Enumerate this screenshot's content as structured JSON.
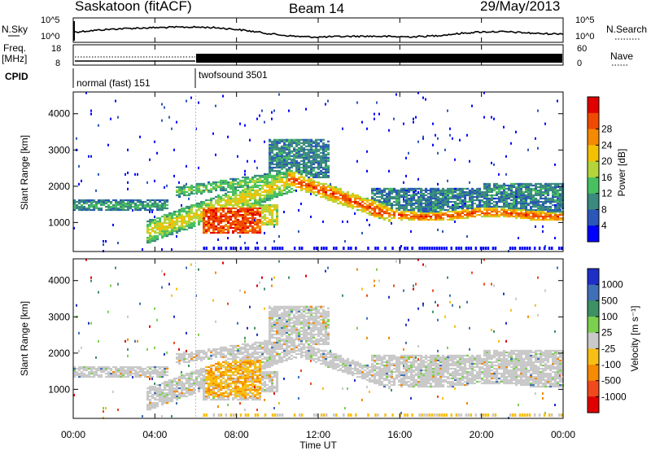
{
  "header": {
    "station": "Saskatoon (fitACF)",
    "beam": "Beam 14",
    "date": "29/May/2013"
  },
  "noise_panel": {
    "left_label": "N.Sky",
    "right_label": "N.Search",
    "left_ticks": [
      "10^5",
      "10^0"
    ],
    "right_ticks": [
      "10^5",
      "10^0"
    ]
  },
  "freq_panel": {
    "left_label_1": "Freq.",
    "left_label_2": "[MHz]",
    "left_ticks": [
      "18",
      "8"
    ],
    "right_label": "Nave",
    "right_ticks": [
      "60",
      "0"
    ]
  },
  "cpid": {
    "label": "CPID",
    "modes": [
      {
        "name": "normal (fast) 151",
        "start_hour": 0,
        "end_hour": 6
      },
      {
        "name": "twofsound 3501",
        "start_hour": 6,
        "end_hour": 24
      }
    ]
  },
  "time_axis": {
    "label": "Time UT",
    "ticks": [
      "00:00",
      "04:00",
      "08:00",
      "12:00",
      "16:00",
      "20:00",
      "00:00"
    ]
  },
  "power_panel": {
    "ylabel": "Slant Range [km]",
    "yticks": [
      "1000",
      "2000",
      "3000",
      "4000"
    ],
    "colorbar_label": "Power [dB]",
    "colorbar_ticks": [
      "4",
      "8",
      "12",
      "16",
      "20",
      "24",
      "28"
    ],
    "colors": [
      "#0000ff",
      "#2a57b8",
      "#3a8a7e",
      "#49c060",
      "#b5d43a",
      "#f4c100",
      "#f58a00",
      "#ef4a00",
      "#e00000"
    ]
  },
  "velocity_panel": {
    "ylabel": "Slant Range [km]",
    "yticks": [
      "1000",
      "2000",
      "3000",
      "4000"
    ],
    "colorbar_label": "Velocity [m s⁻¹]",
    "colorbar_ticks": [
      "1000",
      "500",
      "100",
      "25",
      "-25",
      "-100",
      "-500",
      "-1000"
    ],
    "colors": [
      "#1e2fc8",
      "#3f6fb6",
      "#3d9163",
      "#7bd04e",
      "#c9c9c9",
      "#f7bf14",
      "#f68a00",
      "#f0491c",
      "#e00000"
    ]
  },
  "chart_data": [
    {
      "type": "heatmap",
      "title": "Saskatoon (fitACF) Beam 14 29/May/2013",
      "xlabel": "Time UT",
      "ylabel": "Slant Range [km]",
      "xlim": [
        0,
        24
      ],
      "ylim": [
        200,
        4600
      ],
      "colorbar": {
        "label": "Power [dB]",
        "range": [
          0,
          30
        ]
      },
      "features": [
        {
          "name": "quiet band",
          "start_hour": 0.0,
          "end_hour": 4.5,
          "range_km": [
            1300,
            1600
          ],
          "power_db": 9
        },
        {
          "name": "rising arc",
          "start_hour": 4.0,
          "end_hour": 11.0,
          "range_km": [
            600,
            2400
          ],
          "power_db": 16
        },
        {
          "name": "intense patch",
          "start_hour": 6.5,
          "end_hour": 9.0,
          "range_km": [
            700,
            1300
          ],
          "power_db": 27
        },
        {
          "name": "descending band",
          "start_hour": 11.0,
          "end_hour": 15.0,
          "range_km": [
            1100,
            2200
          ],
          "power_db": 22
        },
        {
          "name": "afternoon band",
          "start_hour": 15.0,
          "end_hour": 24.0,
          "range_km": [
            1050,
            1400
          ],
          "power_db": 21
        }
      ]
    },
    {
      "type": "heatmap",
      "xlabel": "Time UT",
      "ylabel": "Slant Range [km]",
      "xlim": [
        0,
        24
      ],
      "ylim": [
        200,
        4600
      ],
      "colorbar": {
        "label": "Velocity [m s⁻¹]",
        "range": [
          -1000,
          1000
        ]
      },
      "features": [
        {
          "name": "ground scatter",
          "start_hour": 0.0,
          "end_hour": 24.0,
          "range_km": [
            900,
            2600
          ],
          "velocity_ms": 0
        },
        {
          "name": "negative-velocity patch",
          "start_hour": 6.5,
          "end_hour": 9.0,
          "range_km": [
            800,
            1800
          ],
          "velocity_ms": -250
        }
      ]
    }
  ]
}
